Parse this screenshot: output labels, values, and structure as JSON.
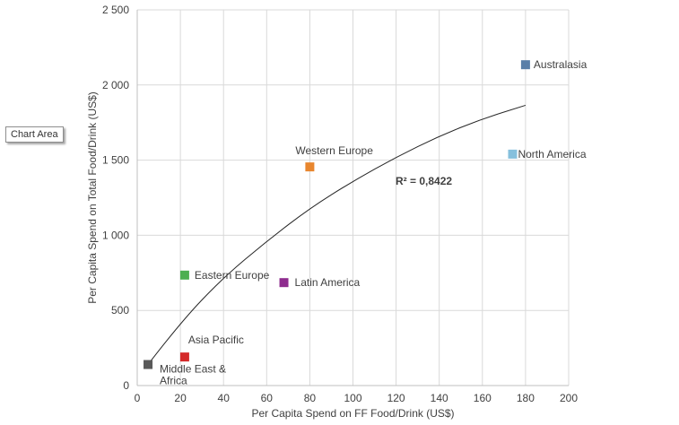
{
  "tooltip": "Chart Area",
  "chart_data": {
    "type": "scatter",
    "xlabel": "Per Capita Spend on FF Food/Drink (US$)",
    "ylabel": "Per Capita Spend on Total Food/Drink (US$)",
    "xlim": [
      0,
      200
    ],
    "ylim": [
      0,
      2500
    ],
    "xticks": [
      0,
      20,
      40,
      60,
      80,
      100,
      120,
      140,
      160,
      180,
      200
    ],
    "yticks": [
      0,
      500,
      1000,
      1500,
      2000,
      2500
    ],
    "ytick_labels": [
      "0",
      "500",
      "1 000",
      "1 500",
      "2 000",
      "2 500"
    ],
    "grid": true,
    "points": [
      {
        "name": "Middle East & Africa",
        "x": 5,
        "y": 140,
        "color": "#595959",
        "label_lines": [
          "Middle East &",
          "Africa"
        ]
      },
      {
        "name": "Asia Pacific",
        "x": 22,
        "y": 190,
        "color": "#d42a2a",
        "label_lines": [
          "Asia Pacific"
        ]
      },
      {
        "name": "Eastern Europe",
        "x": 22,
        "y": 735,
        "color": "#4caf50",
        "label_lines": [
          "Eastern Europe"
        ]
      },
      {
        "name": "Latin America",
        "x": 68,
        "y": 685,
        "color": "#8e2c8e",
        "label_lines": [
          "Latin America"
        ]
      },
      {
        "name": "Western Europe",
        "x": 80,
        "y": 1455,
        "color": "#e8862e",
        "label_lines": [
          "Western Europe"
        ]
      },
      {
        "name": "North America",
        "x": 174,
        "y": 1540,
        "color": "#86c0dd",
        "label_lines": [
          "North America"
        ]
      },
      {
        "name": "Australasia",
        "x": 180,
        "y": 2135,
        "color": "#5a7fa8",
        "label_lines": [
          "Australasia"
        ]
      }
    ],
    "trendline": {
      "type": "polynomial",
      "x": [
        5,
        20,
        40,
        60,
        80,
        100,
        120,
        140,
        160,
        180
      ],
      "y": [
        140,
        420,
        720,
        960,
        1180,
        1360,
        1520,
        1660,
        1775,
        1865
      ]
    },
    "annotation": "R² = 0,8422"
  }
}
